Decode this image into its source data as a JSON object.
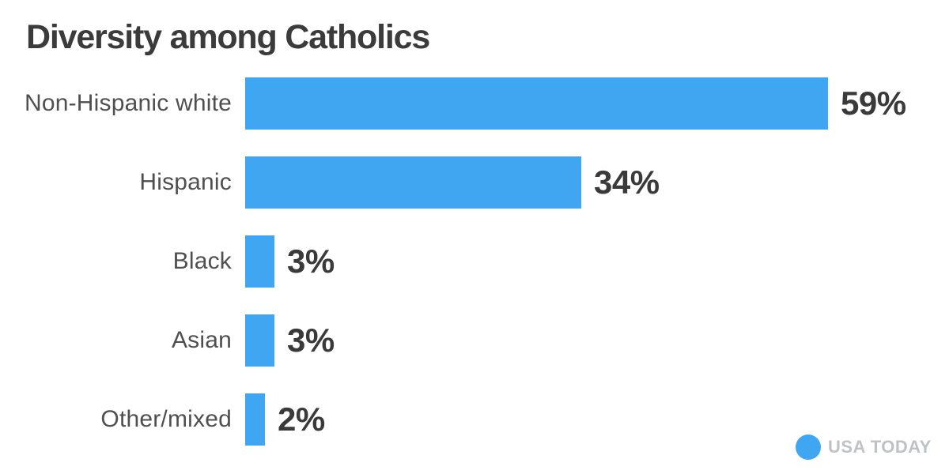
{
  "title": "Diversity among Catholics",
  "chart_data": {
    "type": "bar",
    "orientation": "horizontal",
    "title": "Diversity among Catholics",
    "categories": [
      "Non-Hispanic white",
      "Hispanic",
      "Black",
      "Asian",
      "Other/mixed"
    ],
    "values": [
      59,
      34,
      3,
      3,
      2
    ],
    "value_labels": [
      "59%",
      "34%",
      "3%",
      "3%",
      "2%"
    ],
    "unit": "percent",
    "xlabel": "",
    "ylabel": "",
    "xlim": [
      0,
      59
    ],
    "grid": false,
    "legend": false,
    "bar_color": "#41a6f1"
  },
  "branding": {
    "logo_text": "USA TODAY",
    "logo_dot_color": "#41a6f1",
    "logo_text_color": "#bfc2c4"
  },
  "colors": {
    "background": "#ffffff",
    "title_text": "#3b3b3b",
    "category_text": "#4f4f4f",
    "value_text": "#3a3a3a",
    "bar": "#41a6f1"
  }
}
